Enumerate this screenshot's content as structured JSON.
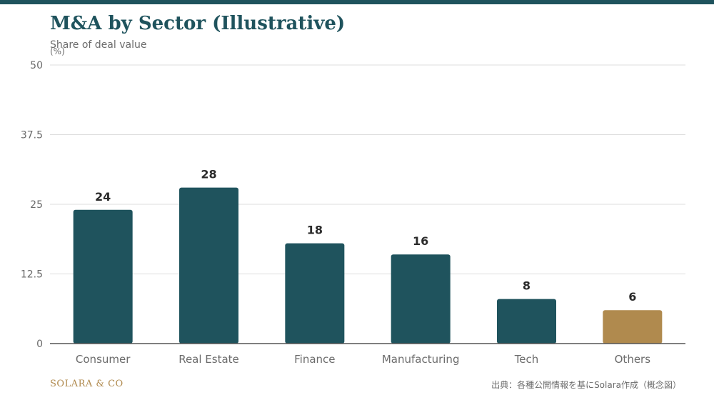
{
  "header": {
    "title": "M&A by Sector (Illustrative)",
    "subtitle": "Share of deal value"
  },
  "footer": {
    "brand": "SOLARA & CO",
    "source": "出典：各種公開情報を基にSolara作成（概念図）"
  },
  "colors": {
    "accent": "#1f535d",
    "highlight": "#b08a4e",
    "grid": "#dddddd",
    "axis_text": "#6b6b6b",
    "label_text": "#2b2b2b"
  },
  "chart_data": {
    "type": "bar",
    "title": "M&A by Sector (Illustrative)",
    "subtitle": "Share of deal value",
    "ylabel": "(%)",
    "xlabel": "",
    "ylim": [
      0,
      50
    ],
    "yticks": [
      "0",
      "12.5",
      "25",
      "37.5",
      "50"
    ],
    "grid": true,
    "categories": [
      "Consumer",
      "Real Estate",
      "Finance",
      "Manufacturing",
      "Tech",
      "Others"
    ],
    "values": [
      24,
      28,
      18,
      16,
      8,
      6
    ],
    "highlight_category": "Others"
  }
}
